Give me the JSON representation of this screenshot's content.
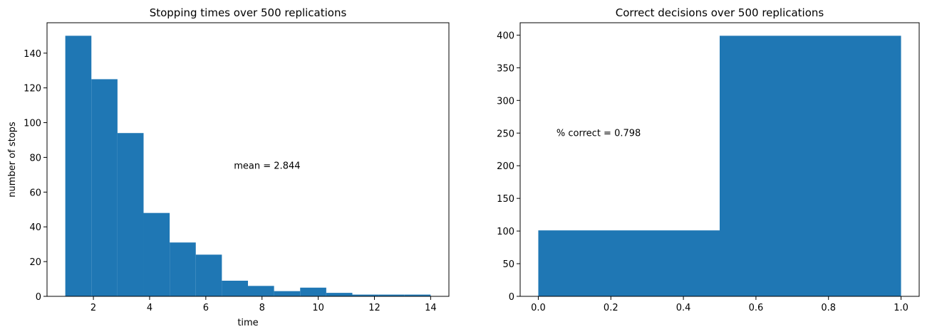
{
  "chart_data": [
    {
      "type": "histogram",
      "title": "Stopping times over 500 replications",
      "x_label": "time",
      "y_label": "number of stops",
      "bins": [
        1,
        1.9285714,
        2.8571429,
        3.7857143,
        4.7142857,
        5.6428571,
        6.5714286,
        7.5,
        8.4285714,
        9.3571429,
        10.2857143,
        11.2142857,
        12.1428571,
        13.0714286,
        14
      ],
      "values": [
        150,
        125,
        94,
        48,
        31,
        24,
        9,
        6,
        3,
        5,
        2,
        1,
        1,
        1
      ],
      "color": "#1f77b4",
      "xlim": [
        0.35,
        14.65
      ],
      "ylim": [
        0,
        157.5
      ],
      "xticks": [
        2,
        4,
        6,
        8,
        10,
        12,
        14
      ],
      "yticks": [
        0,
        20,
        40,
        60,
        80,
        100,
        120,
        140
      ],
      "annotation": {
        "text": "mean = 2.844",
        "x": 7,
        "y": 75
      }
    },
    {
      "type": "histogram",
      "title": "Correct decisions over 500 replications",
      "bins": [
        0,
        0.5,
        1
      ],
      "values": [
        101,
        399
      ],
      "color": "#1f77b4",
      "xlim": [
        -0.05,
        1.05
      ],
      "ylim": [
        0,
        418.95
      ],
      "xticks": [
        {
          "value": 0,
          "label": "0.0"
        },
        0.2,
        0.4,
        0.6,
        0.8,
        {
          "value": 1,
          "label": "1.0"
        }
      ],
      "yticks": [
        0,
        50,
        100,
        150,
        200,
        250,
        300,
        350,
        400
      ],
      "annotation": {
        "text": "% correct = 0.798",
        "x": 0.05,
        "y": 250
      }
    }
  ]
}
